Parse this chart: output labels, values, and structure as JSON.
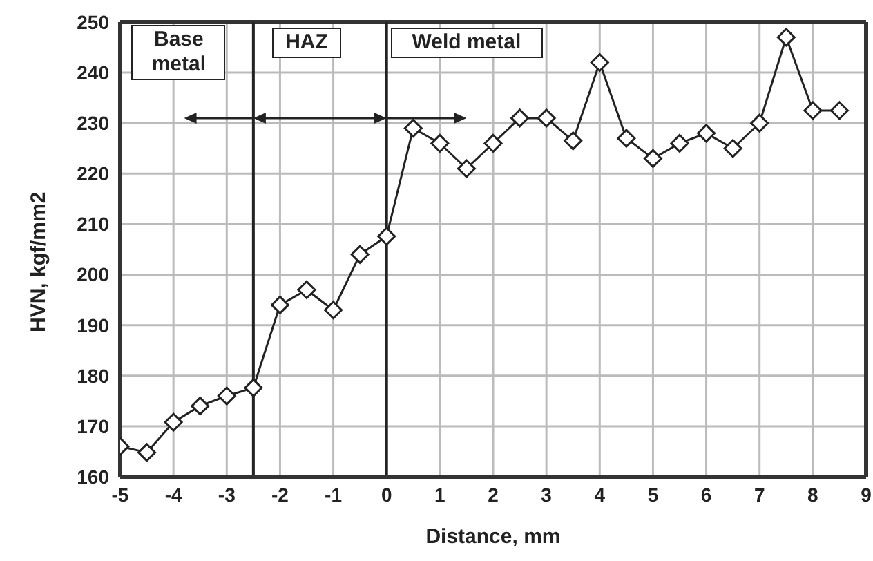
{
  "chart_data": {
    "type": "line",
    "xlabel": "Distance, mm",
    "ylabel": "HVN, kgf/mm2",
    "x": [
      -5,
      -4.5,
      -4,
      -3.5,
      -3,
      -2.5,
      -2,
      -1.5,
      -1,
      -0.5,
      0,
      0.5,
      1,
      1.5,
      2,
      2.5,
      3,
      3.5,
      4,
      4.5,
      5,
      5.5,
      6,
      6.5,
      7,
      7.5,
      8,
      8.5
    ],
    "series": [
      {
        "color": "#222222",
        "values": [
          166,
          164.8,
          170.8,
          174,
          176,
          177.6,
          194,
          197,
          193,
          204,
          207.6,
          229,
          226,
          221,
          226,
          231,
          231,
          226.5,
          242,
          227,
          223,
          226,
          228,
          225,
          230,
          247,
          232.5,
          232.5
        ]
      }
    ],
    "xlim": [
      -5,
      9
    ],
    "xticks": [
      -5,
      -4,
      -3,
      -2,
      -1,
      0,
      1,
      2,
      3,
      4,
      5,
      6,
      7,
      8,
      9
    ],
    "ylim": [
      160,
      250
    ],
    "yticks": [
      160,
      170,
      180,
      190,
      200,
      210,
      220,
      230,
      240,
      250
    ],
    "grid": true,
    "marker": "diamond",
    "line_style": "solid",
    "legend": false,
    "ref_lines": [
      {
        "axis": "x",
        "value": -2.5,
        "color": "#222222"
      },
      {
        "axis": "x",
        "value": 0,
        "color": "#222222"
      }
    ],
    "annotations": [
      "Base metal",
      "HAZ",
      "Weld metal"
    ]
  }
}
